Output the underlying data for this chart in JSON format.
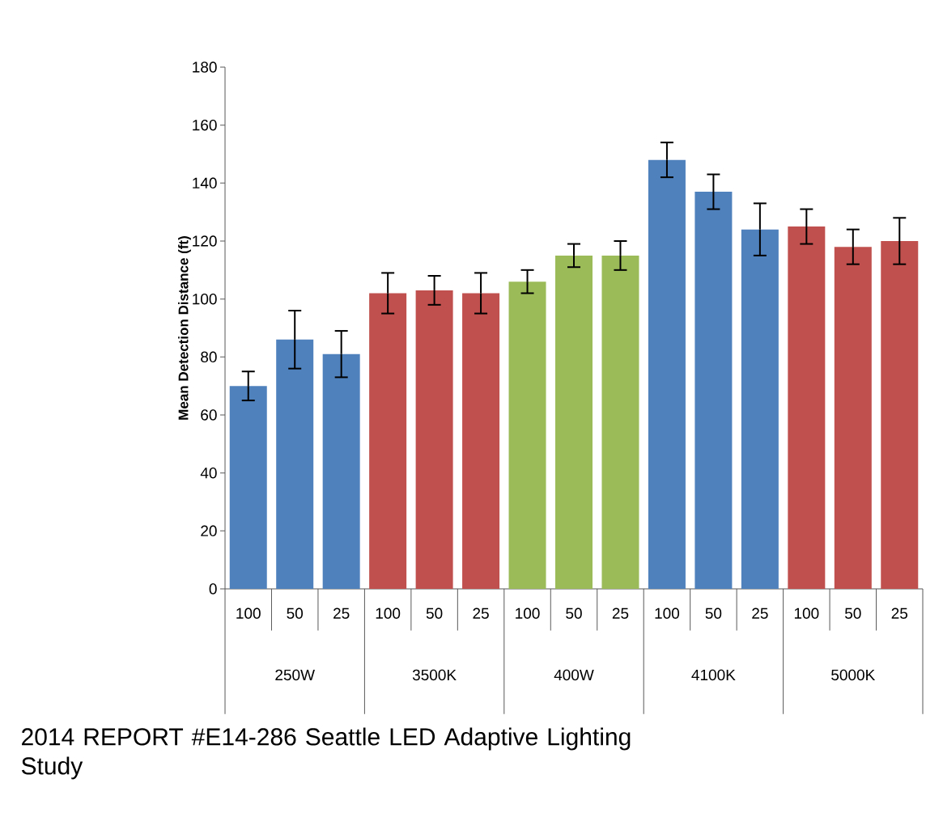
{
  "chart_data": {
    "type": "bar",
    "title": "2014 REPORT #E14-286 Seattle LED Adaptive Lighting Study",
    "ylabel": "Mean Detection Distance  (ft)",
    "categories": [
      "100",
      "50",
      "25",
      "100",
      "50",
      "25",
      "100",
      "50",
      "25",
      "100",
      "50",
      "25",
      "100",
      "50",
      "25"
    ],
    "values": [
      70,
      86,
      81,
      102,
      103,
      102,
      106,
      115,
      115,
      148,
      137,
      124,
      125,
      118,
      120
    ],
    "errors": [
      5,
      10,
      8,
      7,
      5,
      7,
      4,
      4,
      5,
      6,
      6,
      9,
      6,
      6,
      8
    ],
    "colors": [
      "#4f81bd",
      "#4f81bd",
      "#4f81bd",
      "#c0504d",
      "#c0504d",
      "#c0504d",
      "#9bbb59",
      "#9bbb59",
      "#9bbb59",
      "#4f81bd",
      "#4f81bd",
      "#4f81bd",
      "#c0504d",
      "#c0504d",
      "#c0504d"
    ],
    "annotations": [
      "250W",
      "3500K",
      "400W",
      "4100K",
      "5000K"
    ],
    "ylim": [
      0,
      180
    ],
    "yticks": [
      0,
      20,
      40,
      60,
      80,
      100,
      120,
      140,
      160,
      180
    ]
  }
}
